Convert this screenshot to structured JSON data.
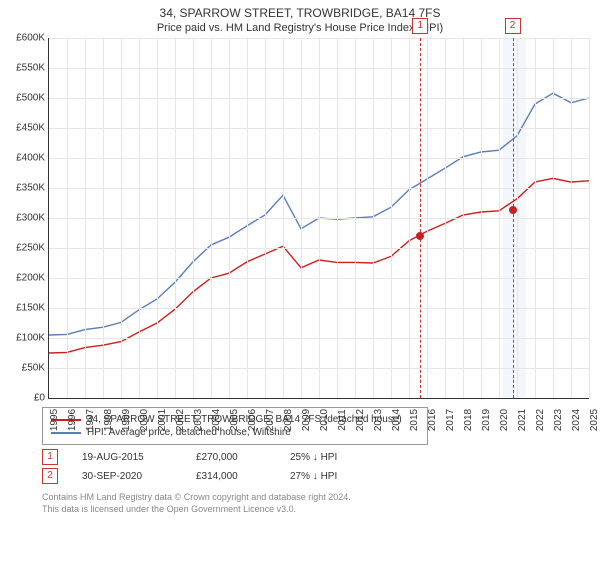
{
  "title": "34, SPARROW STREET, TROWBRIDGE, BA14 7FS",
  "subtitle": "Price paid vs. HM Land Registry's House Price Index (HPI)",
  "chart": {
    "type": "line",
    "ylim": [
      0,
      600000
    ],
    "ytick_step": 50000,
    "ytick_format": "£{k}K",
    "x_years": [
      1995,
      1996,
      1997,
      1998,
      1999,
      2000,
      2001,
      2002,
      2003,
      2004,
      2005,
      2006,
      2007,
      2008,
      2009,
      2010,
      2011,
      2012,
      2013,
      2014,
      2015,
      2016,
      2017,
      2018,
      2019,
      2020,
      2021,
      2022,
      2023,
      2024,
      2025
    ],
    "grid_color": "#e6e6e6",
    "background_color": "#ffffff",
    "axis_color": "#333333",
    "title_fontsize": 12,
    "label_fontsize": 10,
    "hpi_series": {
      "color": "#5b7db8",
      "line_width": 1.4,
      "values": [
        105000,
        108000,
        112000,
        118000,
        128000,
        145000,
        165000,
        195000,
        225000,
        255000,
        270000,
        285000,
        305000,
        340000,
        280000,
        300000,
        300000,
        298000,
        302000,
        320000,
        345000,
        365000,
        385000,
        400000,
        410000,
        415000,
        435000,
        490000,
        510000,
        490000,
        500000
      ]
    },
    "price_series": {
      "color": "#cc1f1f",
      "line_width": 1.4,
      "values": [
        75000,
        78000,
        82000,
        88000,
        96000,
        108000,
        125000,
        150000,
        175000,
        200000,
        210000,
        225000,
        240000,
        255000,
        215000,
        230000,
        228000,
        224000,
        225000,
        238000,
        260000,
        278000,
        293000,
        303000,
        310000,
        314000,
        330000,
        360000,
        368000,
        358000,
        362000
      ]
    },
    "shaded_bands": [
      {
        "from_year": 2020.2,
        "to_year": 2021.5,
        "color": "#f3f6fb"
      }
    ],
    "transactions_markers": [
      {
        "num": "1",
        "year": 2015.63,
        "price": 270000,
        "dot_color": "#cc1f1f"
      },
      {
        "num": "2",
        "year": 2020.75,
        "price": 314000,
        "dot_color": "#cc1f1f"
      }
    ]
  },
  "legend": {
    "rows": [
      {
        "color": "#cc1f1f",
        "label": "34, SPARROW STREET, TROWBRIDGE, BA14 7FS (detached house)"
      },
      {
        "color": "#5b7db8",
        "label": "HPI: Average price, detached house, Wiltshire"
      }
    ]
  },
  "transactions": [
    {
      "num": "1",
      "date": "19-AUG-2015",
      "price": "£270,000",
      "diff": "25% ↓ HPI"
    },
    {
      "num": "2",
      "date": "30-SEP-2020",
      "price": "£314,000",
      "diff": "27% ↓ HPI"
    }
  ],
  "footer_lines": [
    "Contains HM Land Registry data © Crown copyright and database right 2024.",
    "This data is licensed under the Open Government Licence v3.0."
  ]
}
